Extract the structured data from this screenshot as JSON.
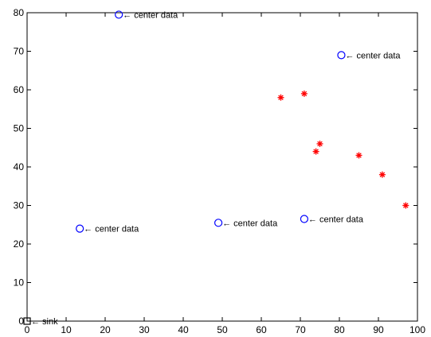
{
  "chart_data": {
    "type": "scatter",
    "title": "",
    "xlabel": "",
    "ylabel": "",
    "xlim": [
      0,
      100
    ],
    "ylim": [
      0,
      80
    ],
    "x_ticks": [
      0,
      10,
      20,
      30,
      40,
      50,
      60,
      70,
      80,
      90,
      100
    ],
    "y_ticks": [
      0,
      10,
      20,
      30,
      40,
      50,
      60,
      70,
      80
    ],
    "x_tick_labels": [
      "0",
      "10",
      "20",
      "30",
      "40",
      "50",
      "60",
      "70",
      "80",
      "90",
      "100"
    ],
    "y_tick_labels": [
      "0",
      "10",
      "20",
      "30",
      "40",
      "50",
      "60",
      "70",
      "80"
    ],
    "grid": false,
    "series": [
      {
        "marker": "circle",
        "color": "#0000ff",
        "points": [
          {
            "x": 23.5,
            "y": 79.5,
            "label": "← center data"
          },
          {
            "x": 80.5,
            "y": 69.0,
            "label": "← center data"
          },
          {
            "x": 13.5,
            "y": 24.0,
            "label": "← center data"
          },
          {
            "x": 49.0,
            "y": 25.5,
            "label": "← center data"
          },
          {
            "x": 71.0,
            "y": 26.5,
            "label": "← center data"
          }
        ]
      },
      {
        "marker": "asterisk",
        "color": "#ff0000",
        "points": [
          {
            "x": 65.0,
            "y": 58.0
          },
          {
            "x": 71.0,
            "y": 59.0
          },
          {
            "x": 75.0,
            "y": 46.0
          },
          {
            "x": 74.0,
            "y": 44.0
          },
          {
            "x": 85.0,
            "y": 43.0
          },
          {
            "x": 91.0,
            "y": 38.0
          },
          {
            "x": 97.0,
            "y": 30.0
          }
        ]
      },
      {
        "marker": "square",
        "color": "#000000",
        "points": [
          {
            "x": 0.0,
            "y": 0.0,
            "label": "← sink"
          }
        ]
      }
    ]
  }
}
